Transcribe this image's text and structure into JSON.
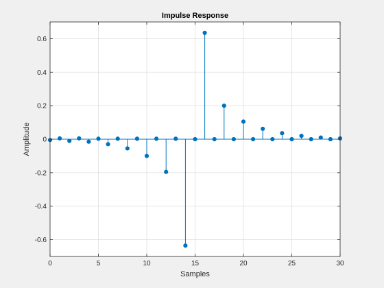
{
  "chart_data": {
    "type": "stem",
    "title": "Impulse Response",
    "xlabel": "Samples",
    "ylabel": "Amplitude",
    "xlim": [
      0,
      30
    ],
    "ylim": [
      -0.7,
      0.7
    ],
    "x_ticks": [
      0,
      5,
      10,
      15,
      20,
      25,
      30
    ],
    "x_tick_labels": [
      "0",
      "5",
      "10",
      "15",
      "20",
      "25",
      "30"
    ],
    "y_ticks": [
      -0.6,
      -0.4,
      -0.2,
      0,
      0.2,
      0.4,
      0.6
    ],
    "y_tick_labels": [
      "-0.6",
      "-0.4",
      "-0.2",
      "0",
      "0.2",
      "0.4",
      "0.6"
    ],
    "grid": true,
    "series": [
      {
        "color": "#0072bd",
        "x": [
          0,
          1,
          2,
          3,
          4,
          5,
          6,
          7,
          8,
          9,
          10,
          11,
          12,
          13,
          14,
          15,
          16,
          17,
          18,
          19,
          20,
          21,
          22,
          23,
          24,
          25,
          26,
          27,
          28,
          29,
          30
        ],
        "y": [
          -0.005,
          0.005,
          -0.01,
          0.005,
          -0.015,
          0.003,
          -0.03,
          0.003,
          -0.055,
          0.003,
          -0.1,
          0.003,
          -0.195,
          0.003,
          -0.635,
          0.0,
          0.635,
          0.0,
          0.2,
          0.0,
          0.105,
          0.0,
          0.062,
          0.0,
          0.036,
          0.0,
          0.02,
          0.0,
          0.01,
          0.0,
          0.005
        ]
      }
    ]
  },
  "colors": {
    "figure_bg": "#f0f0f0",
    "axes_bg": "#ffffff",
    "grid": "#dfdfdf",
    "axis": "#262626",
    "stem": "#0072bd"
  }
}
